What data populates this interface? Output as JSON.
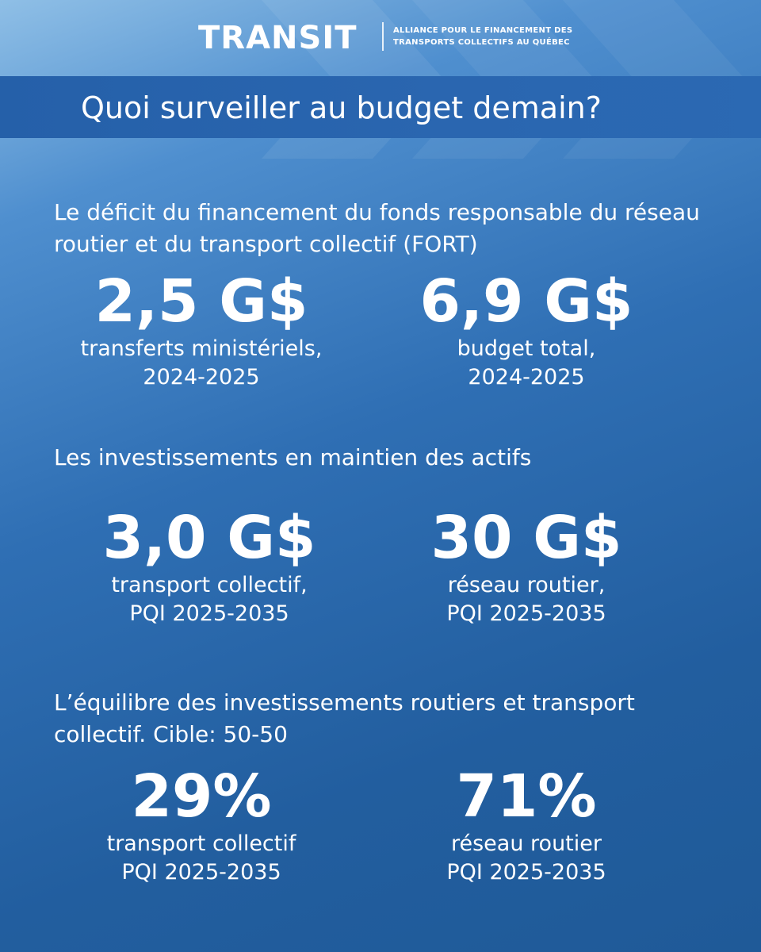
{
  "brand": {
    "logo_text": "TRANSIT",
    "subtitle_line1": "ALLIANCE POUR LE FINANCEMENT DES",
    "subtitle_line2": "TRANSPORTS COLLECTIFS AU QUÉBEC"
  },
  "title": "Quoi surveiller au budget demain?",
  "sections": [
    {
      "heading": "Le déficit du financement du fonds responsable du réseau routier et du transport collectif (FORT)",
      "stats": [
        {
          "value": "2,5 G$",
          "line1": "transferts ministériels,",
          "line2": "2024-2025"
        },
        {
          "value": "6,9 G$",
          "line1": "budget total,",
          "line2": "2024-2025"
        }
      ]
    },
    {
      "heading": "Les investissements en maintien des actifs",
      "stats": [
        {
          "value": "3,0 G$",
          "line1": "transport collectif,",
          "line2": "PQI 2025-2035"
        },
        {
          "value": "30 G$",
          "line1": "réseau routier,",
          "line2": "PQI 2025-2035"
        }
      ]
    },
    {
      "heading": "L’équilibre des investissements routiers et transport collectif. Cible: 50-50",
      "stats": [
        {
          "value": "29%",
          "line1": "transport collectif",
          "line2": "PQI 2025-2035"
        },
        {
          "value": "71%",
          "line1": "réseau routier",
          "line2": "PQI 2025-2035"
        }
      ]
    }
  ],
  "colors": {
    "background": "#2a67ad",
    "title_band": "#2864ae",
    "text": "#ffffff"
  }
}
